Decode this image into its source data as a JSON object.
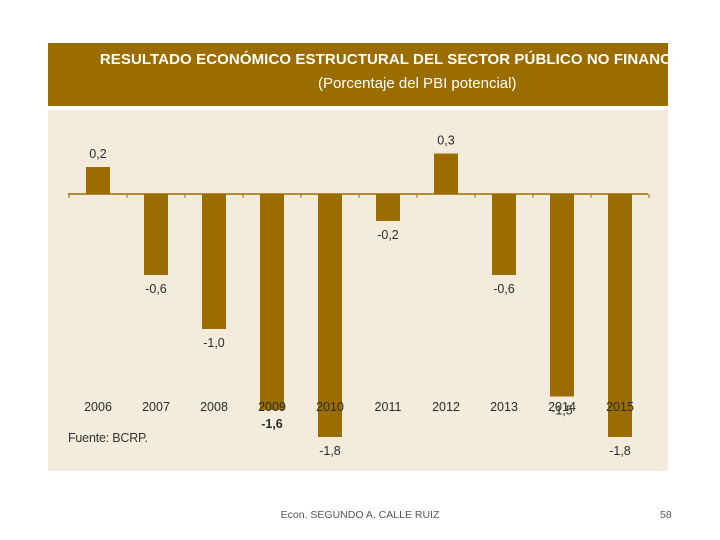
{
  "header": {
    "title": "RESULTADO ECONÓMICO ESTRUCTURAL DEL SECTOR PÚBLICO NO FINANCIERO",
    "subtitle": "(Porcentaje del PBI potencial)"
  },
  "source": "Fuente: BCRP.",
  "footer": {
    "author": "Econ. SEGUNDO A. CALLE RUIZ",
    "page": "58"
  },
  "colors": {
    "header_bg": "#9b6c00",
    "bar": "#9b6c00",
    "panel_bg": "#f3ebdb"
  },
  "chart_data": {
    "type": "bar",
    "title": "RESULTADO ECONÓMICO ESTRUCTURAL DEL SECTOR PÚBLICO NO FINANCIERO",
    "subtitle": "(Porcentaje del PBI potencial)",
    "categories": [
      "2006",
      "2007",
      "2008",
      "2009",
      "2010",
      "2011",
      "2012",
      "2013",
      "2014",
      "2015"
    ],
    "values": [
      0.2,
      -0.6,
      -1.0,
      -1.6,
      -1.8,
      -0.2,
      0.3,
      -0.6,
      -1.5,
      -1.8
    ],
    "data_labels": [
      "0,2",
      "-0,6",
      "-1,0",
      "-1,6",
      "-1,8",
      "-0,2",
      "0,3",
      "-0,6",
      "-1,5",
      "-1,8"
    ],
    "emphasized_labels": [
      false,
      false,
      false,
      true,
      false,
      false,
      false,
      false,
      false,
      false
    ],
    "xlabel": "",
    "ylabel": "",
    "ylim": [
      -1.8,
      0.3
    ],
    "grid": false
  }
}
